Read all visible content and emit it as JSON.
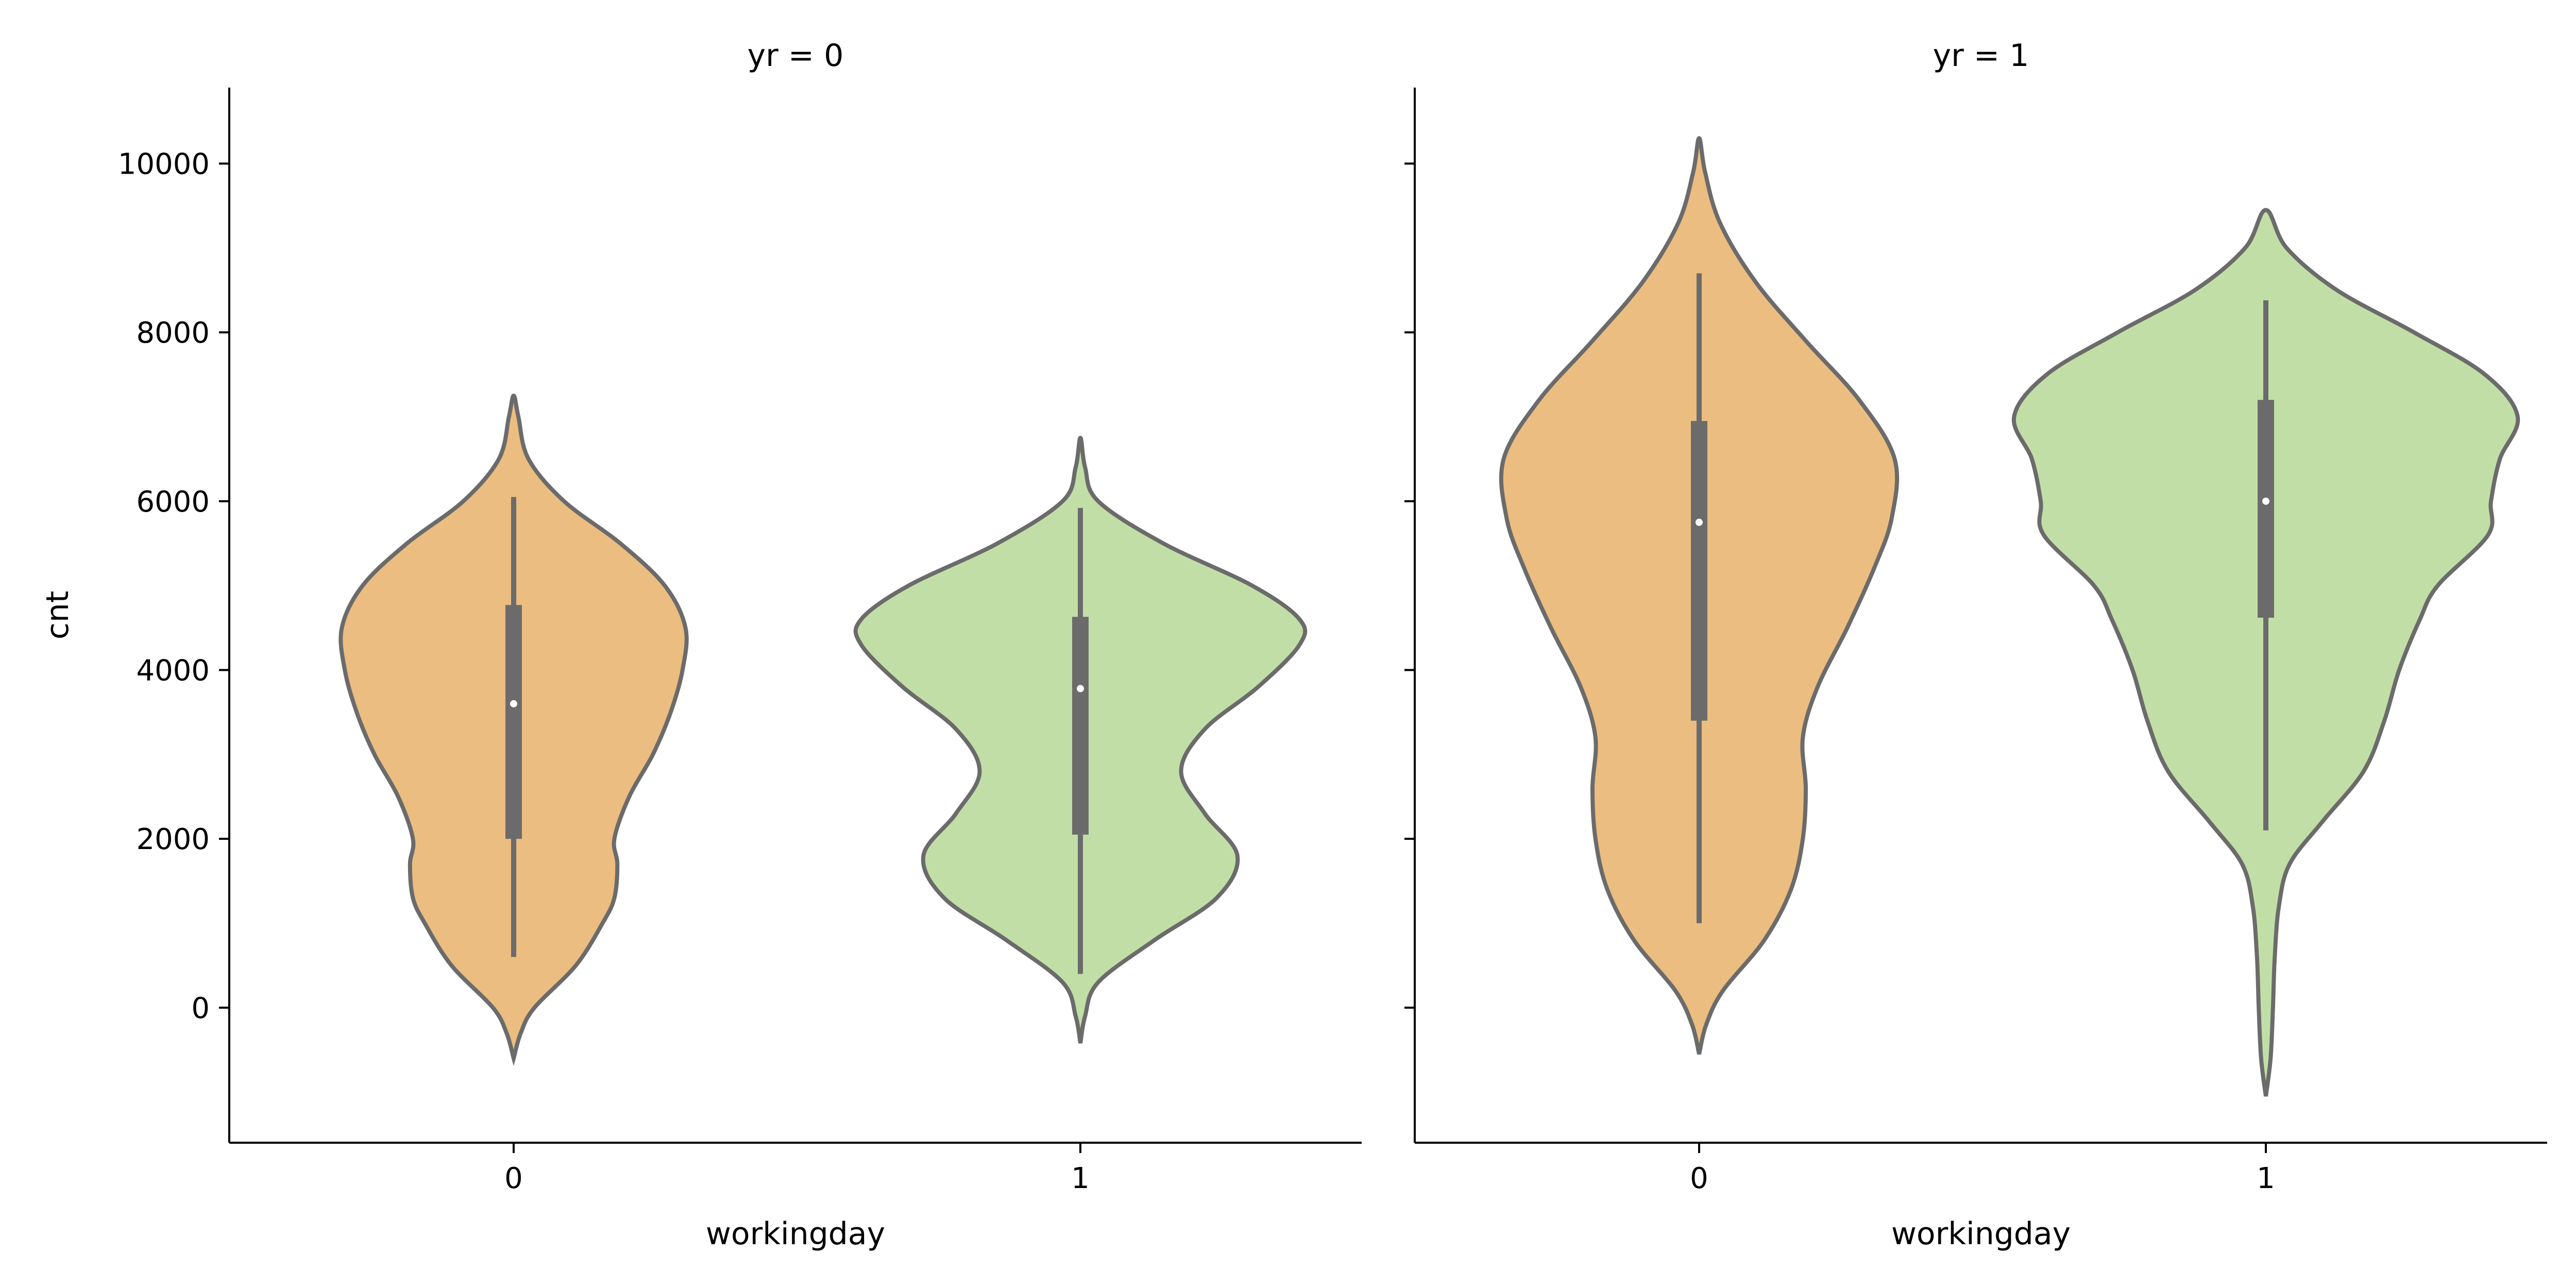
{
  "chart_data": [
    {
      "type": "violin",
      "title": "yr = 0",
      "xlabel": "workingday",
      "ylabel": "cnt",
      "categories": [
        "0",
        "1"
      ],
      "yticks": [
        0,
        2000,
        4000,
        6000,
        8000,
        10000
      ],
      "ylim": [
        -1600,
        10900
      ],
      "grid": false,
      "violins": [
        {
          "category": "0",
          "color": "#ebbd80",
          "min_extent": -600,
          "max_extent": 7250,
          "whisker_low": 600,
          "whisker_high": 6050,
          "q1": 2000,
          "q3": 4770,
          "median": 3600,
          "density_profile": [
            [
              -600,
              0
            ],
            [
              -300,
              12
            ],
            [
              0,
              35
            ],
            [
              500,
              105
            ],
            [
              1000,
              150
            ],
            [
              1300,
              170
            ],
            [
              1700,
              175
            ],
            [
              2000,
              170
            ],
            [
              2500,
              195
            ],
            [
              3000,
              235
            ],
            [
              3500,
              265
            ],
            [
              4000,
              285
            ],
            [
              4500,
              290
            ],
            [
              5000,
              255
            ],
            [
              5500,
              180
            ],
            [
              6000,
              85
            ],
            [
              6500,
              25
            ],
            [
              7000,
              8
            ],
            [
              7250,
              0
            ]
          ]
        },
        {
          "category": "1",
          "color": "#c2dea7",
          "min_extent": -420,
          "max_extent": 6750,
          "whisker_low": 400,
          "whisker_high": 5920,
          "q1": 2050,
          "q3": 4630,
          "median": 3780,
          "density_profile": [
            [
              -420,
              0
            ],
            [
              -100,
              8
            ],
            [
              300,
              30
            ],
            [
              800,
              125
            ],
            [
              1300,
              230
            ],
            [
              1800,
              265
            ],
            [
              2300,
              210
            ],
            [
              2800,
              170
            ],
            [
              3300,
              210
            ],
            [
              3800,
              300
            ],
            [
              4300,
              370
            ],
            [
              4600,
              370
            ],
            [
              5000,
              290
            ],
            [
              5500,
              140
            ],
            [
              6000,
              30
            ],
            [
              6400,
              8
            ],
            [
              6750,
              0
            ]
          ]
        }
      ]
    },
    {
      "type": "violin",
      "title": "yr = 1",
      "xlabel": "workingday",
      "ylabel": "",
      "categories": [
        "0",
        "1"
      ],
      "yticks": [
        0,
        2000,
        4000,
        6000,
        8000,
        10000
      ],
      "ylim": [
        -1600,
        10900
      ],
      "grid": false,
      "violins": [
        {
          "category": "0",
          "color": "#ebbd80",
          "min_extent": -550,
          "max_extent": 10300,
          "whisker_low": 1000,
          "whisker_high": 8700,
          "q1": 3400,
          "q3": 6950,
          "median": 5750,
          "density_profile": [
            [
              -550,
              0
            ],
            [
              -200,
              12
            ],
            [
              200,
              40
            ],
            [
              800,
              110
            ],
            [
              1400,
              155
            ],
            [
              2000,
              175
            ],
            [
              2600,
              180
            ],
            [
              3200,
              175
            ],
            [
              3800,
              200
            ],
            [
              4500,
              250
            ],
            [
              5200,
              295
            ],
            [
              5800,
              325
            ],
            [
              6500,
              330
            ],
            [
              7200,
              270
            ],
            [
              7900,
              180
            ],
            [
              8600,
              95
            ],
            [
              9300,
              35
            ],
            [
              9900,
              10
            ],
            [
              10300,
              0
            ]
          ]
        },
        {
          "category": "1",
          "color": "#c2dea7",
          "min_extent": -1050,
          "max_extent": 9450,
          "whisker_low": 2100,
          "whisker_high": 8380,
          "q1": 4620,
          "q3": 7200,
          "median": 6000,
          "density_profile": [
            [
              -1050,
              0
            ],
            [
              -600,
              8
            ],
            [
              0,
              12
            ],
            [
              600,
              15
            ],
            [
              1200,
              22
            ],
            [
              1700,
              40
            ],
            [
              2200,
              95
            ],
            [
              2800,
              165
            ],
            [
              3400,
              200
            ],
            [
              4000,
              225
            ],
            [
              4600,
              260
            ],
            [
              5000,
              290
            ],
            [
              5600,
              375
            ],
            [
              6000,
              380
            ],
            [
              6500,
              395
            ],
            [
              7000,
              425
            ],
            [
              7500,
              370
            ],
            [
              8000,
              250
            ],
            [
              8500,
              120
            ],
            [
              9000,
              35
            ],
            [
              9450,
              0
            ]
          ]
        }
      ]
    }
  ]
}
